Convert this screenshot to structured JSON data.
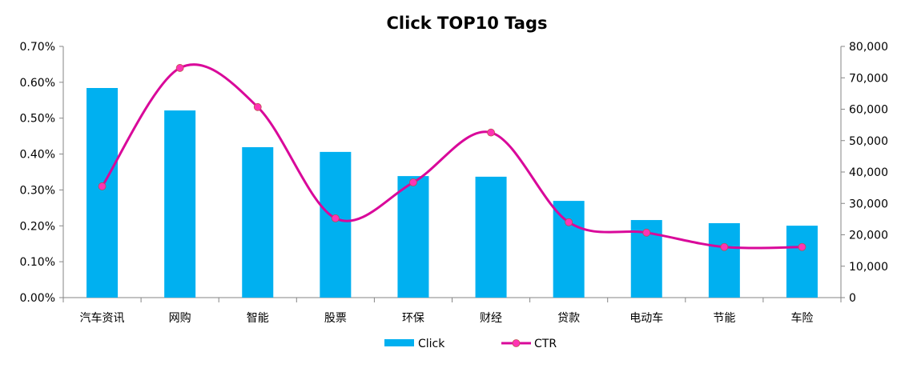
{
  "chart_data": {
    "type": "bar+line",
    "title": "Click TOP10 Tags",
    "categories": [
      "汽车资讯",
      "网购",
      "智能",
      "股票",
      "环保",
      "财经",
      "贷款",
      "电动车",
      "节能",
      "车险"
    ],
    "series": [
      {
        "name": "Click",
        "type": "bar",
        "axis": "right",
        "color": "#00B0F0",
        "values": [
          66750,
          59600,
          47900,
          46400,
          38700,
          38500,
          30800,
          24700,
          23700,
          22900
        ]
      },
      {
        "name": "CTR",
        "type": "line",
        "axis": "left",
        "smooth": true,
        "color": "#D9089A",
        "marker_color": "#FF33B5",
        "values": [
          0.31,
          0.64,
          0.531,
          0.221,
          0.321,
          0.46,
          0.21,
          0.181,
          0.141,
          0.141
        ]
      }
    ],
    "left_axis": {
      "ylim": [
        0,
        0.7
      ],
      "ticks": [
        "0.00%",
        "0.10%",
        "0.20%",
        "0.30%",
        "0.40%",
        "0.50%",
        "0.60%",
        "0.70%"
      ]
    },
    "right_axis": {
      "ylim": [
        0,
        80000
      ],
      "ticks": [
        "0",
        "10,000",
        "20,000",
        "30,000",
        "40,000",
        "50,000",
        "60,000",
        "70,000",
        "80,000"
      ]
    },
    "grid": false,
    "legend": "bottom"
  }
}
